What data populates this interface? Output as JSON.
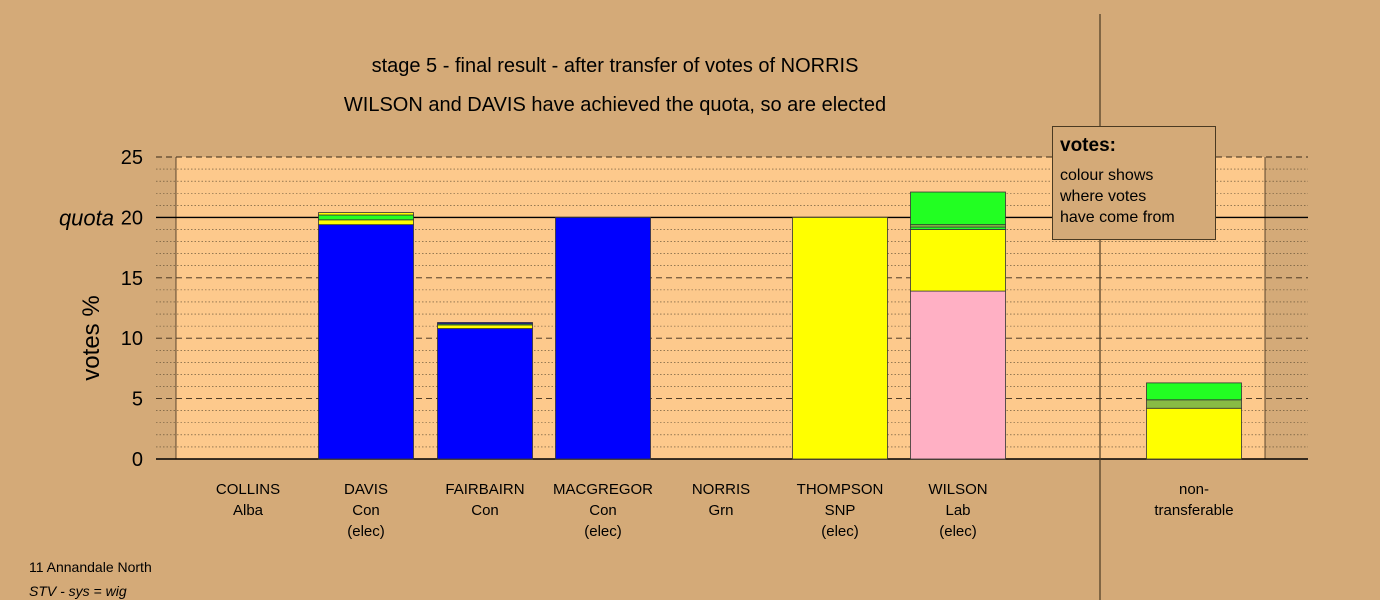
{
  "chart_data": {
    "type": "bar",
    "title": "stage 5 - final result - after transfer of votes of NORRIS",
    "subtitle": "WILSON and DAVIS have achieved the quota, so are elected",
    "ylabel": "votes %",
    "ylim": [
      0,
      25
    ],
    "yticks": [
      0,
      5,
      10,
      15,
      20,
      25
    ],
    "quota": 20,
    "quota_label": "quota",
    "grid": "dashed major and dotted minor horizontal lines",
    "stacked": true,
    "categories": [
      {
        "name": "COLLINS",
        "party": "Alba",
        "status": ""
      },
      {
        "name": "DAVIS",
        "party": "Con",
        "status": "(elec)"
      },
      {
        "name": "FAIRBAIRN",
        "party": "Con",
        "status": ""
      },
      {
        "name": "MACGREGOR",
        "party": "Con",
        "status": "(elec)"
      },
      {
        "name": "NORRIS",
        "party": "Grn",
        "status": ""
      },
      {
        "name": "THOMPSON",
        "party": "SNP",
        "status": "(elec)"
      },
      {
        "name": "WILSON",
        "party": "Lab",
        "status": "(elec)"
      },
      {
        "name": "non-",
        "party": "transferable",
        "status": ""
      }
    ],
    "stacks": [
      [],
      [
        {
          "color": "#0000ff",
          "value": 19.4
        },
        {
          "color": "#ffff00",
          "value": 0.4
        },
        {
          "color": "#22ff22",
          "value": 0.4
        },
        {
          "color": "#ffff00",
          "value": 0.2
        }
      ],
      [
        {
          "color": "#0000ff",
          "value": 10.8
        },
        {
          "color": "#ffff00",
          "value": 0.3
        },
        {
          "color": "#22ff22",
          "value": 0.1
        },
        {
          "color": "#0000ff",
          "value": 0.1
        }
      ],
      [
        {
          "color": "#0000ff",
          "value": 20.0
        }
      ],
      [],
      [
        {
          "color": "#ffff00",
          "value": 20.0
        }
      ],
      [
        {
          "color": "#ffb0c4",
          "value": 13.9
        },
        {
          "color": "#ffff00",
          "value": 5.1
        },
        {
          "color": "#22ff22",
          "value": 0.2
        },
        {
          "color": "#88bb44",
          "value": 0.2
        },
        {
          "color": "#22ff22",
          "value": 2.7
        }
      ],
      [
        {
          "color": "#ffff00",
          "value": 4.2
        },
        {
          "color": "#88bb44",
          "value": 0.7
        },
        {
          "color": "#22ff22",
          "value": 1.4
        }
      ]
    ]
  },
  "legend": {
    "title": "votes:",
    "lines": [
      "colour shows",
      "where votes",
      "have come from"
    ]
  },
  "footer": {
    "line1": "11 Annandale North",
    "line2": "STV - sys = wig"
  },
  "colors": {
    "background": "#d4aa78",
    "plot_background": "#fdc98c"
  }
}
